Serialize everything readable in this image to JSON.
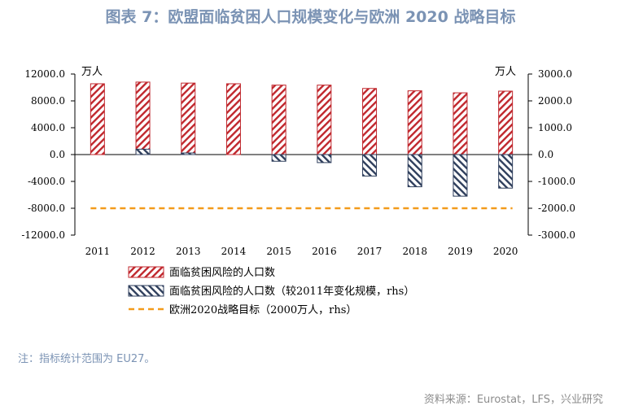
{
  "chart_data": {
    "type": "bar",
    "title": "图表 7：欧盟面临贫困人口规模变化与欧洲 2020 战略目标",
    "categories": [
      "2011",
      "2012",
      "2013",
      "2014",
      "2015",
      "2016",
      "2017",
      "2018",
      "2019",
      "2020"
    ],
    "left_unit": "万人",
    "right_unit": "万人",
    "left_ylim": [
      -12000,
      12000
    ],
    "left_ticks": [
      "12000.0",
      "8000.0",
      "4000.0",
      "0.0",
      "-4000.0",
      "-8000.0",
      "-12000.0"
    ],
    "right_ylim": [
      -3000,
      3000
    ],
    "right_ticks": [
      "3000.0",
      "2000.0",
      "1000.0",
      "0.0",
      "-1000.0",
      "-2000.0",
      "-3000.0"
    ],
    "series": [
      {
        "name": "面临贫困风险的人口数",
        "axis": "left",
        "style": "red-hatch",
        "values": [
          10550,
          10800,
          10650,
          10550,
          10350,
          10350,
          9850,
          9500,
          9200,
          9450
        ]
      },
      {
        "name": "面临贫困风险的人口数（较2011年变化规模，rhs）",
        "axis": "right",
        "style": "blue-hatch",
        "values": [
          0,
          200,
          60,
          0,
          -250,
          -300,
          -800,
          -1200,
          -1550,
          -1250
        ]
      },
      {
        "name": "欧洲2020战略目标（2000万人，rhs）",
        "axis": "right",
        "style": "orange-dash",
        "value": -2000
      }
    ],
    "colors": {
      "red": "#c0272d",
      "blue": "#2e3e5c",
      "orange": "#f39b1b"
    }
  },
  "footer": {
    "note": "注：指标统计范围为 EU27。",
    "source": "资料来源：Eurostat，LFS，兴业研究"
  }
}
